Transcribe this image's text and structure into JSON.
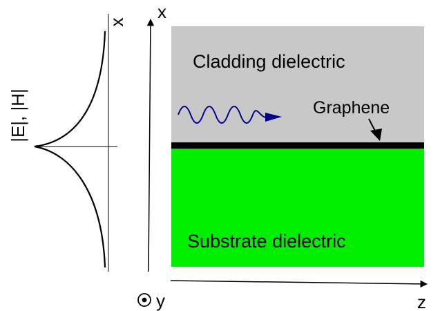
{
  "labels": {
    "cladding": "Cladding dielectric",
    "graphene": "Graphene",
    "substrate": "Substrate dielectric",
    "field_axis": "|E|, |H|",
    "profile_axis": "x",
    "axis_x": "x",
    "axis_y": "y",
    "axis_z": "z"
  },
  "colors": {
    "cladding": "#c8c8c8",
    "graphene": "#000000",
    "substrate": "#00ee00",
    "wave": "#00008b",
    "lines": "#000000"
  },
  "icons": {
    "wave": "propagating-wave-arrow-icon",
    "y_axis": "out-of-page-dot-icon",
    "pointer": "graphene-pointer-arrow-icon"
  }
}
